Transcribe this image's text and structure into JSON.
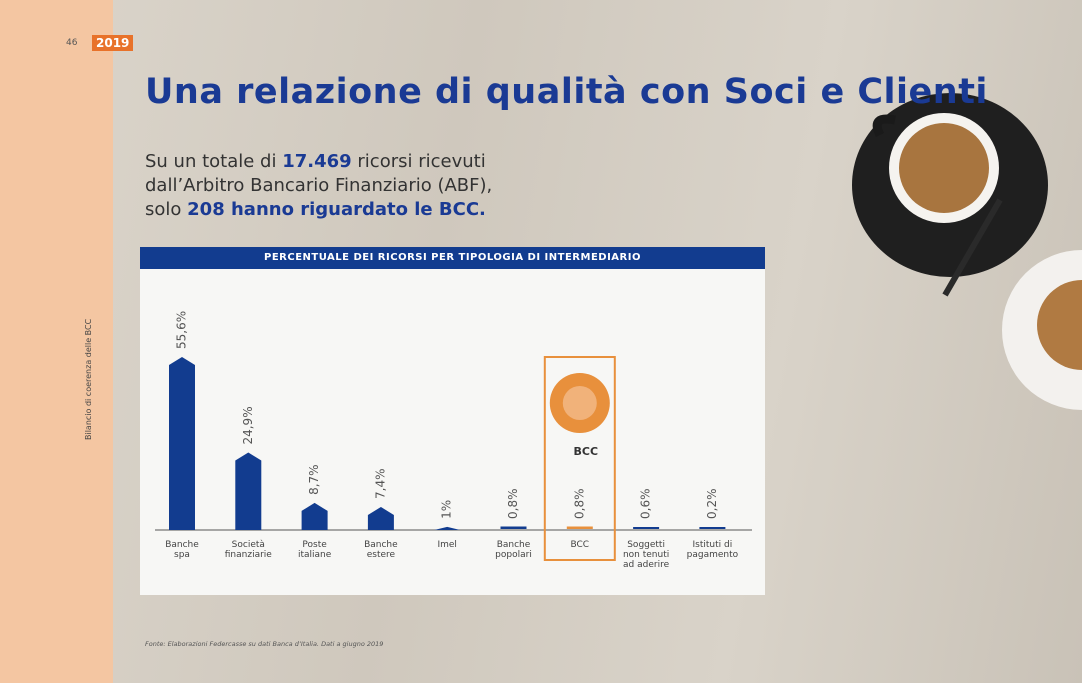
{
  "header": {
    "page_number": "46",
    "year": "2019"
  },
  "side_text": "Bilancio di coerenza delle BCC",
  "title": "Una relazione di qualità con Soci e Clienti",
  "intro": [
    {
      "text": "Su un totale di ",
      "bold": false
    },
    {
      "text": "17.469",
      "bold": true
    },
    {
      "text": " ricorsi ricevuti\ndall’Arbitro Bancario Finanziario (ABF),\nsolo ",
      "bold": false
    },
    {
      "text": "208 hanno riguardato le BCC.",
      "bold": true
    }
  ],
  "chart_data": {
    "type": "bar",
    "title": "PERCENTUALE DEI RICORSI PER TIPOLOGIA DI INTERMEDIARIO",
    "categories": [
      "Banche\nspa",
      "Società\nfinanziarie",
      "Poste\nitaliane",
      "Banche\nestere",
      "Imel",
      "Banche\npopolari",
      "BCC",
      "Soggetti\nnon tenuti\nad aderire",
      "Istituti di\npagamento"
    ],
    "values": [
      55.6,
      24.9,
      8.7,
      7.4,
      1,
      0.8,
      0.8,
      0.6,
      0.2
    ],
    "value_labels": [
      "55,6%",
      "24,9%",
      "8,7%",
      "7,4%",
      "1%",
      "0,8%",
      "0,8%",
      "0,6%",
      "0,2%"
    ],
    "colors": [
      "#123c8f",
      "#123c8f",
      "#123c8f",
      "#123c8f",
      "#123c8f",
      "#123c8f",
      "#e8903c",
      "#123c8f",
      "#123c8f"
    ],
    "logo_text": "BCC"
  },
  "source": "Fonte: Elaborazioni Federcasse su dati Banca d’Italia. Dati a giugno 2019"
}
